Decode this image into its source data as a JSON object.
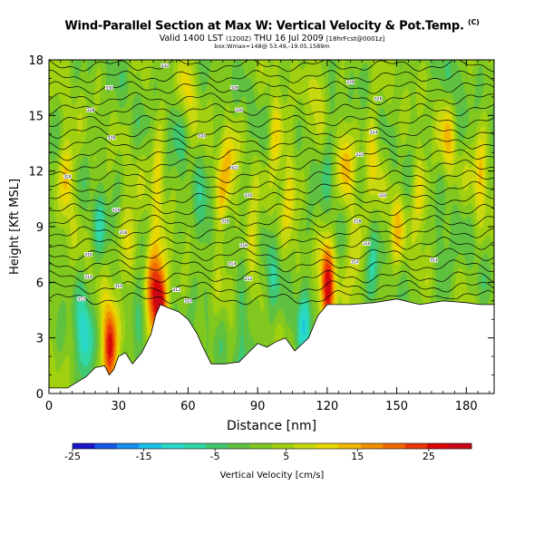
{
  "header": {
    "title": "Wind-Parallel Section at Max W: Vertical Velocity & Pot.Temp.",
    "title_badge": "(C)",
    "subtitle": "Valid 1400 LST",
    "subtitle_small": "(1200Z)",
    "subtitle_date": "THU 16 Jul 2009",
    "subtitle_note": "[18hrFcst@0001z]",
    "info": "box:Wmax=148@ 53.49,-19.05,1589m"
  },
  "chart_data": {
    "type": "heatmap",
    "title": "Wind-Parallel Section at Max W: Vertical Velocity & Pot.Temp.",
    "xlabel": "Distance [nm]",
    "ylabel": "Height [Kft MSL]",
    "xlim": [
      0,
      192
    ],
    "ylim": [
      0,
      18
    ],
    "xticks": [
      0,
      30,
      60,
      90,
      120,
      150,
      180
    ],
    "yticks": [
      0,
      3,
      6,
      9,
      12,
      15,
      18
    ],
    "colorbar": {
      "label": "Vertical Velocity [cm/s]",
      "min": -25,
      "max": 31,
      "ticks": [
        -25,
        -15,
        -5,
        5,
        15,
        25
      ],
      "colors": [
        "#1818c8",
        "#1858e8",
        "#1890f0",
        "#18c0e8",
        "#28d8c8",
        "#30d8a8",
        "#40c870",
        "#60c040",
        "#80c820",
        "#a0d010",
        "#c8d810",
        "#e8d800",
        "#f0b800",
        "#f09000",
        "#f06800",
        "#e83808",
        "#d80808",
        "#c80818"
      ]
    },
    "terrain_nm_kft": [
      [
        0,
        0.3
      ],
      [
        8,
        0.3
      ],
      [
        12,
        0.6
      ],
      [
        16,
        0.9
      ],
      [
        20,
        1.4
      ],
      [
        24,
        1.5
      ],
      [
        26,
        1.0
      ],
      [
        28,
        1.3
      ],
      [
        30,
        2.0
      ],
      [
        33,
        2.2
      ],
      [
        36,
        1.6
      ],
      [
        40,
        2.2
      ],
      [
        44,
        3.2
      ],
      [
        46,
        4.2
      ],
      [
        48,
        4.8
      ],
      [
        52,
        4.6
      ],
      [
        56,
        4.4
      ],
      [
        60,
        4.0
      ],
      [
        64,
        3.2
      ],
      [
        66,
        2.6
      ],
      [
        70,
        1.6
      ],
      [
        76,
        1.6
      ],
      [
        82,
        1.7
      ],
      [
        86,
        2.2
      ],
      [
        90,
        2.7
      ],
      [
        94,
        2.5
      ],
      [
        98,
        2.8
      ],
      [
        102,
        3.0
      ],
      [
        106,
        2.3
      ],
      [
        112,
        3.0
      ],
      [
        116,
        4.2
      ],
      [
        120,
        4.8
      ],
      [
        130,
        4.8
      ],
      [
        140,
        4.9
      ],
      [
        150,
        5.1
      ],
      [
        160,
        4.8
      ],
      [
        170,
        5.0
      ],
      [
        180,
        4.9
      ],
      [
        186,
        4.8
      ],
      [
        192,
        4.8
      ]
    ],
    "updraft_cores": [
      {
        "x": 26,
        "y": 2.5,
        "w": 28
      },
      {
        "x": 48,
        "y": 5.0,
        "w": 30
      },
      {
        "x": 120,
        "y": 5.8,
        "w": 26
      },
      {
        "x": 44,
        "y": 6.0,
        "w": 16
      },
      {
        "x": 8,
        "y": 11.8,
        "w": 13
      },
      {
        "x": 35,
        "y": 8.0,
        "w": 12
      },
      {
        "x": 47,
        "y": 12.0,
        "w": 10
      },
      {
        "x": 74,
        "y": 10.0,
        "w": 10
      },
      {
        "x": 78,
        "y": 12.5,
        "w": 10
      },
      {
        "x": 98,
        "y": 13.5,
        "w": 11
      },
      {
        "x": 104,
        "y": 11.0,
        "w": 10
      },
      {
        "x": 128,
        "y": 12.5,
        "w": 11
      },
      {
        "x": 140,
        "y": 13.0,
        "w": 10
      },
      {
        "x": 150,
        "y": 9.0,
        "w": 9
      },
      {
        "x": 160,
        "y": 10.5,
        "w": 10
      },
      {
        "x": 172,
        "y": 14.0,
        "w": 10
      },
      {
        "x": 186,
        "y": 12.0,
        "w": 11
      },
      {
        "x": 60,
        "y": 16.5,
        "w": 8
      },
      {
        "x": 116,
        "y": 16.8,
        "w": 8
      },
      {
        "x": 88,
        "y": 8.0,
        "w": 9
      },
      {
        "x": 132,
        "y": 7.5,
        "w": 10
      }
    ],
    "downdraft_cores": [
      {
        "x": 15,
        "y": 3.0,
        "w": -14
      },
      {
        "x": 38,
        "y": 5.0,
        "w": -9
      },
      {
        "x": 22,
        "y": 9.0,
        "w": -6
      },
      {
        "x": 66,
        "y": 9.0,
        "w": -7
      },
      {
        "x": 84,
        "y": 3.0,
        "w": -9
      },
      {
        "x": 96,
        "y": 7.0,
        "w": -6
      },
      {
        "x": 110,
        "y": 4.0,
        "w": -10
      },
      {
        "x": 140,
        "y": 7.0,
        "w": -6
      },
      {
        "x": 170,
        "y": 7.0,
        "w": -5
      },
      {
        "x": 120,
        "y": 13.0,
        "w": -5
      },
      {
        "x": 56,
        "y": 14.0,
        "w": -5
      },
      {
        "x": 175,
        "y": 16.5,
        "w": -4
      }
    ],
    "isentropes_kft": [
      5.1,
      5.7,
      6.3,
      6.9,
      7.5,
      8.1,
      8.7,
      9.3,
      9.9,
      10.5,
      11.1,
      11.7,
      12.3,
      12.9,
      13.5,
      14.1,
      14.7,
      15.3,
      15.9,
      16.5,
      17.1,
      17.7
    ],
    "theta_labels": [
      {
        "x": 14,
        "y": 5.1,
        "text": "312"
      },
      {
        "x": 17,
        "y": 6.3,
        "text": "314"
      },
      {
        "x": 17,
        "y": 7.5,
        "text": "316"
      },
      {
        "x": 32,
        "y": 8.7,
        "text": "318"
      },
      {
        "x": 29,
        "y": 9.9,
        "text": "320"
      },
      {
        "x": 8,
        "y": 11.7,
        "text": "324"
      },
      {
        "x": 27,
        "y": 13.8,
        "text": "326"
      },
      {
        "x": 18,
        "y": 15.3,
        "text": "328"
      },
      {
        "x": 26,
        "y": 16.5,
        "text": "330"
      },
      {
        "x": 50,
        "y": 17.7,
        "text": "332"
      },
      {
        "x": 76,
        "y": 9.3,
        "text": "318"
      },
      {
        "x": 79,
        "y": 7.0,
        "text": "314"
      },
      {
        "x": 84,
        "y": 8.0,
        "text": "316"
      },
      {
        "x": 86,
        "y": 10.7,
        "text": "320"
      },
      {
        "x": 80,
        "y": 12.2,
        "text": "322"
      },
      {
        "x": 66,
        "y": 13.9,
        "text": "324"
      },
      {
        "x": 82,
        "y": 15.3,
        "text": "326"
      },
      {
        "x": 80,
        "y": 16.5,
        "text": "328"
      },
      {
        "x": 132,
        "y": 7.1,
        "text": "314"
      },
      {
        "x": 137,
        "y": 8.1,
        "text": "316"
      },
      {
        "x": 133,
        "y": 9.3,
        "text": "318"
      },
      {
        "x": 144,
        "y": 10.7,
        "text": "320"
      },
      {
        "x": 134,
        "y": 12.9,
        "text": "322"
      },
      {
        "x": 140,
        "y": 14.1,
        "text": "324"
      },
      {
        "x": 142,
        "y": 15.9,
        "text": "326"
      },
      {
        "x": 130,
        "y": 16.8,
        "text": "328"
      },
      {
        "x": 166,
        "y": 7.2,
        "text": "314"
      },
      {
        "x": 55,
        "y": 5.6,
        "text": "312"
      },
      {
        "x": 60,
        "y": 5.0,
        "text": "310"
      },
      {
        "x": 86,
        "y": 6.2,
        "text": "312"
      },
      {
        "x": 30,
        "y": 5.8,
        "text": "310"
      }
    ]
  }
}
